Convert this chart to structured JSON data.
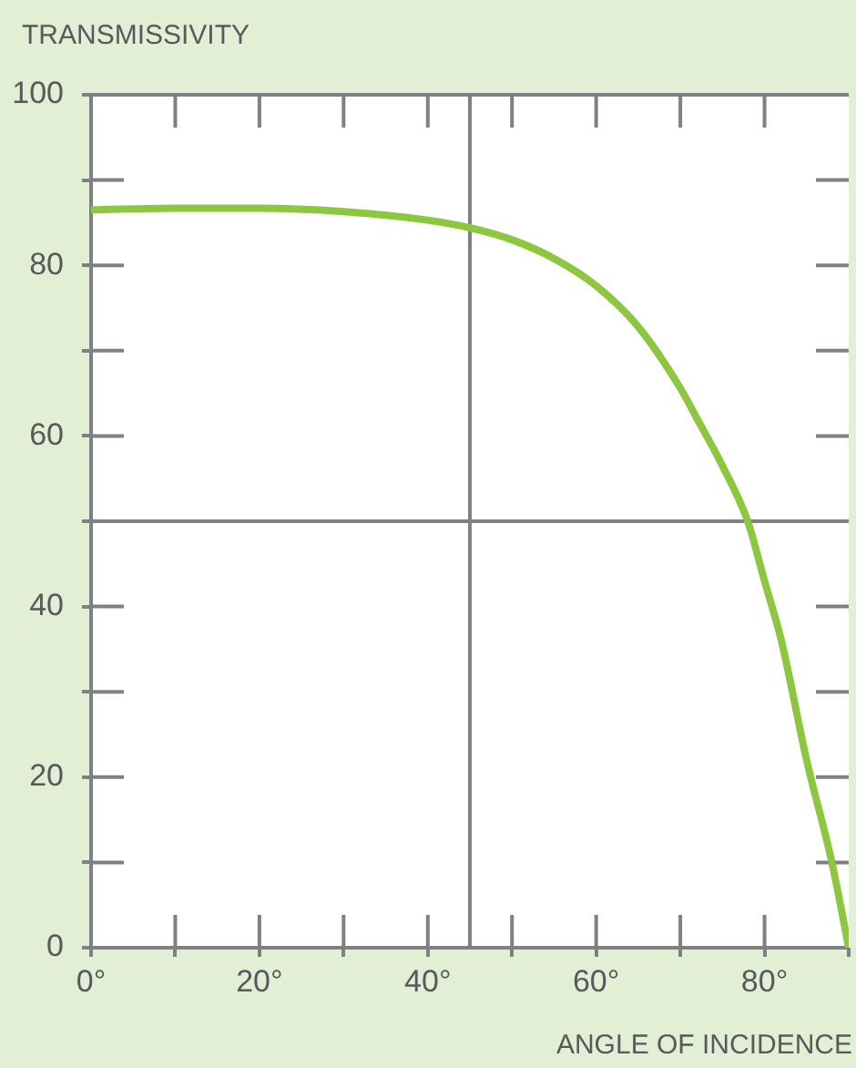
{
  "chart_data": {
    "type": "line",
    "ylabel": "TRANSMISSIVITY",
    "xlabel": "ANGLE OF INCIDENCE",
    "x": [
      0,
      10,
      15,
      20,
      30,
      40,
      45,
      50,
      55,
      60,
      65,
      70,
      72,
      75,
      78,
      80,
      82,
      85,
      88,
      90
    ],
    "values": [
      86.5,
      86.7,
      86.7,
      86.7,
      86.3,
      85.3,
      84.4,
      83,
      80.8,
      77.6,
      72.8,
      65.6,
      62,
      56.5,
      50,
      43,
      36,
      22,
      10,
      0
    ],
    "color": "#8dc63f",
    "marker": "none",
    "line_style": "solid",
    "xlim": [
      0,
      90
    ],
    "ylim": [
      0,
      100
    ],
    "xticks": [
      {
        "value": 0,
        "label": "0°"
      },
      {
        "value": 10,
        "label": null
      },
      {
        "value": 20,
        "label": "20°"
      },
      {
        "value": 30,
        "label": null
      },
      {
        "value": 40,
        "label": "40°"
      },
      {
        "value": 50,
        "label": null
      },
      {
        "value": 60,
        "label": "60°"
      },
      {
        "value": 70,
        "label": null
      },
      {
        "value": 80,
        "label": "80°"
      },
      {
        "value": 90,
        "label": null
      }
    ],
    "yticks": [
      0,
      {
        "value": 10,
        "label": null
      },
      20,
      {
        "value": 30,
        "label": null
      },
      40,
      {
        "value": 50,
        "label": null
      },
      60,
      {
        "value": 70,
        "label": null
      },
      80,
      {
        "value": 90,
        "label": null
      },
      100
    ],
    "ref_lines": [
      {
        "axis": "x",
        "value": 45,
        "color": "#808080"
      },
      {
        "axis": "y",
        "value": 50,
        "color": "#808080"
      }
    ]
  }
}
